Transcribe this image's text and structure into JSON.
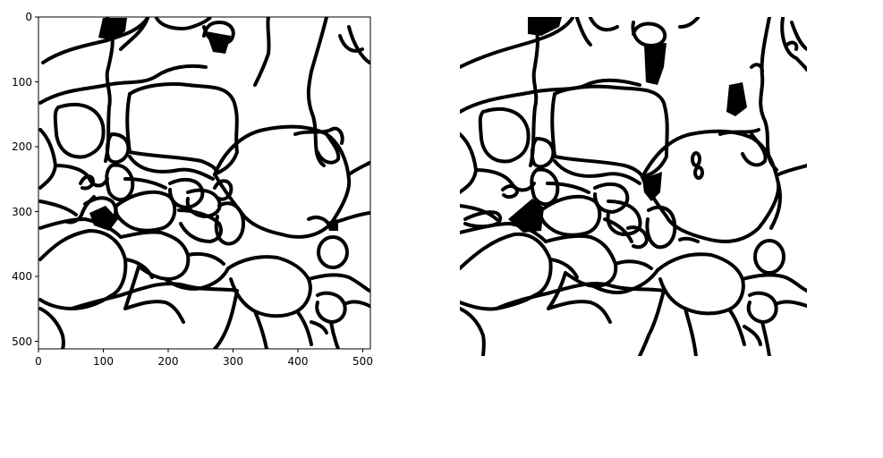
{
  "figure": {
    "left_panel": {
      "x_ticks": [
        "0",
        "100",
        "200",
        "300",
        "400",
        "500"
      ],
      "y_ticks": [
        "0",
        "100",
        "200",
        "300",
        "400",
        "500"
      ],
      "image_content": "binary-segmentation-mask"
    },
    "right_panel": {
      "image_content": "binary-segmentation-mask-prediction"
    }
  }
}
